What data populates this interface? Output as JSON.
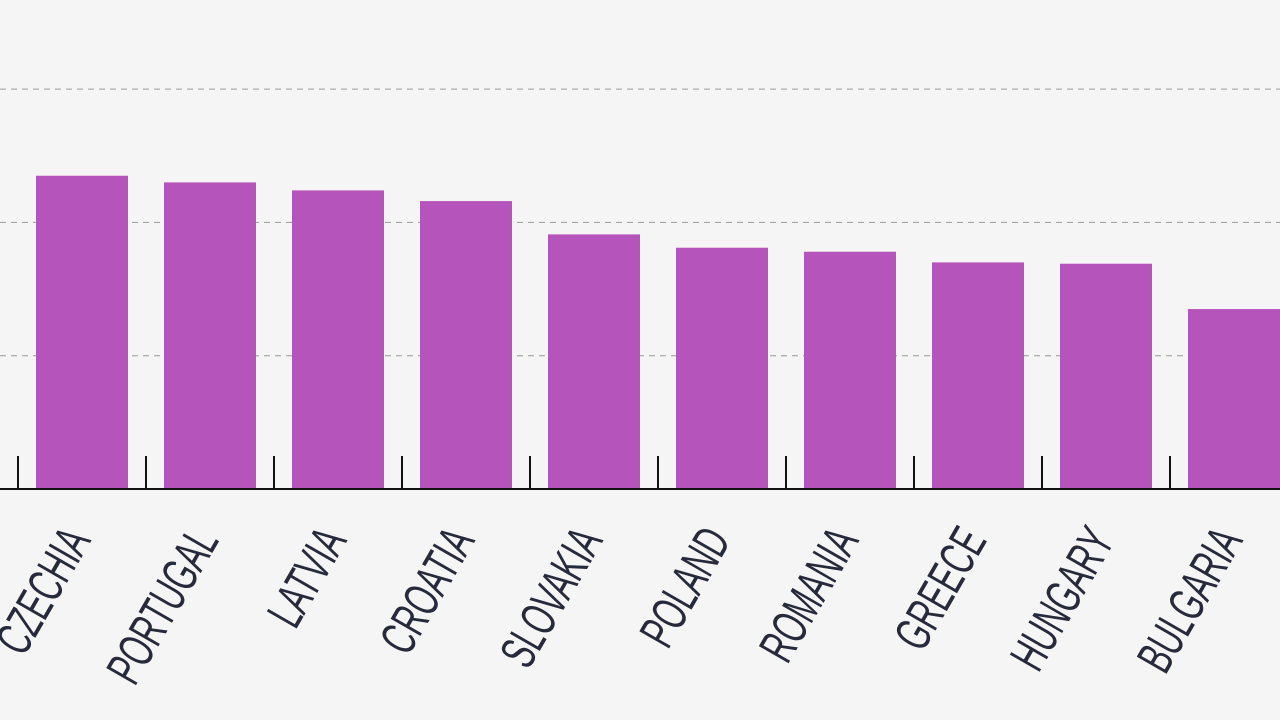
{
  "chart_data": {
    "type": "bar",
    "title": "",
    "xlabel": "",
    "ylabel": "",
    "categories": [
      "CZECHIA",
      "PORTUGAL",
      "LATVIA",
      "CROATIA",
      "SLOVAKIA",
      "POLAND",
      "ROMANIA",
      "GREECE",
      "HUNGARY",
      "BULGARIA"
    ],
    "values": [
      2.35,
      2.3,
      2.24,
      2.16,
      1.91,
      1.81,
      1.78,
      1.7,
      1.69,
      1.35
    ],
    "ylim": [
      0,
      3
    ],
    "gridlines": [
      1,
      2,
      3
    ],
    "grid": true,
    "legend": "none",
    "bar_color": "#b555bb",
    "axis_color": "#111111",
    "grid_color": "#9a9a9a",
    "label_color": "#262a3b",
    "background": "#f5f5f5"
  }
}
